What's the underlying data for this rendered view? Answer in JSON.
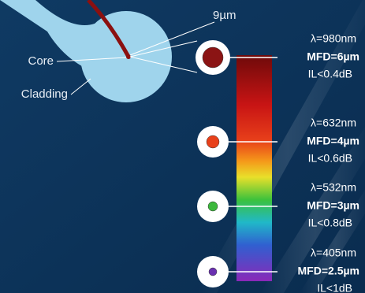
{
  "labels": {
    "core_size": "9µm",
    "core": "Core",
    "cladding": "Cladding"
  },
  "modes": [
    {
      "wavelength": "λ=980nm",
      "mfd": "MFD=6µm",
      "loss": "IL<0.4dB"
    },
    {
      "wavelength": "λ=632nm",
      "mfd": "MFD=4µm",
      "loss": "IL<0.6dB"
    },
    {
      "wavelength": "λ=532nm",
      "mfd": "MFD=3µm",
      "loss": "IL<0.8dB"
    },
    {
      "wavelength": "λ=405nm",
      "mfd": "MFD=2.5µm",
      "loss": "IL<1dB"
    }
  ]
}
